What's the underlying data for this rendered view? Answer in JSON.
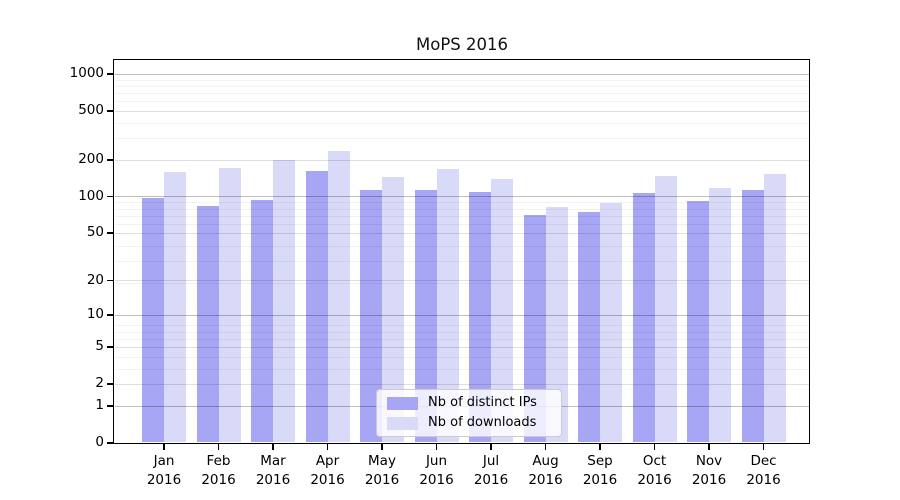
{
  "chart_data": {
    "type": "bar",
    "title": "MoPS 2016",
    "categories": [
      "Jan",
      "Feb",
      "Mar",
      "Apr",
      "May",
      "Jun",
      "Jul",
      "Aug",
      "Sep",
      "Oct",
      "Nov",
      "Dec"
    ],
    "category_year": "2016",
    "series": [
      {
        "name": "Nb of distinct IPs",
        "color": "#a6a6f4",
        "values": [
          97,
          84,
          94,
          162,
          113,
          113,
          108,
          70,
          74,
          106,
          91,
          113
        ]
      },
      {
        "name": "Nb of downloads",
        "color": "#d9d9f8",
        "values": [
          157,
          172,
          199,
          235,
          145,
          167,
          139,
          81,
          88,
          147,
          117,
          152
        ]
      }
    ],
    "yscale": "log1p",
    "ylim": [
      0,
      1288
    ],
    "yticks": [
      0,
      1,
      2,
      5,
      10,
      20,
      50,
      100,
      200,
      500,
      1000
    ],
    "emphasized_yticks": [
      1,
      10,
      100,
      1000
    ],
    "minor_gridlines": [
      3,
      4,
      6,
      7,
      8,
      19,
      29,
      39,
      59,
      69,
      79,
      89,
      299,
      399,
      599,
      699,
      799,
      899
    ],
    "grid": true,
    "legend_position": "lower center"
  },
  "colors": {
    "major_grid": "#bdbdbd",
    "sub_grid": "#e2e2e2",
    "minor_grid": "#f1f1f1",
    "spine": "#000000",
    "background": "#ffffff"
  }
}
